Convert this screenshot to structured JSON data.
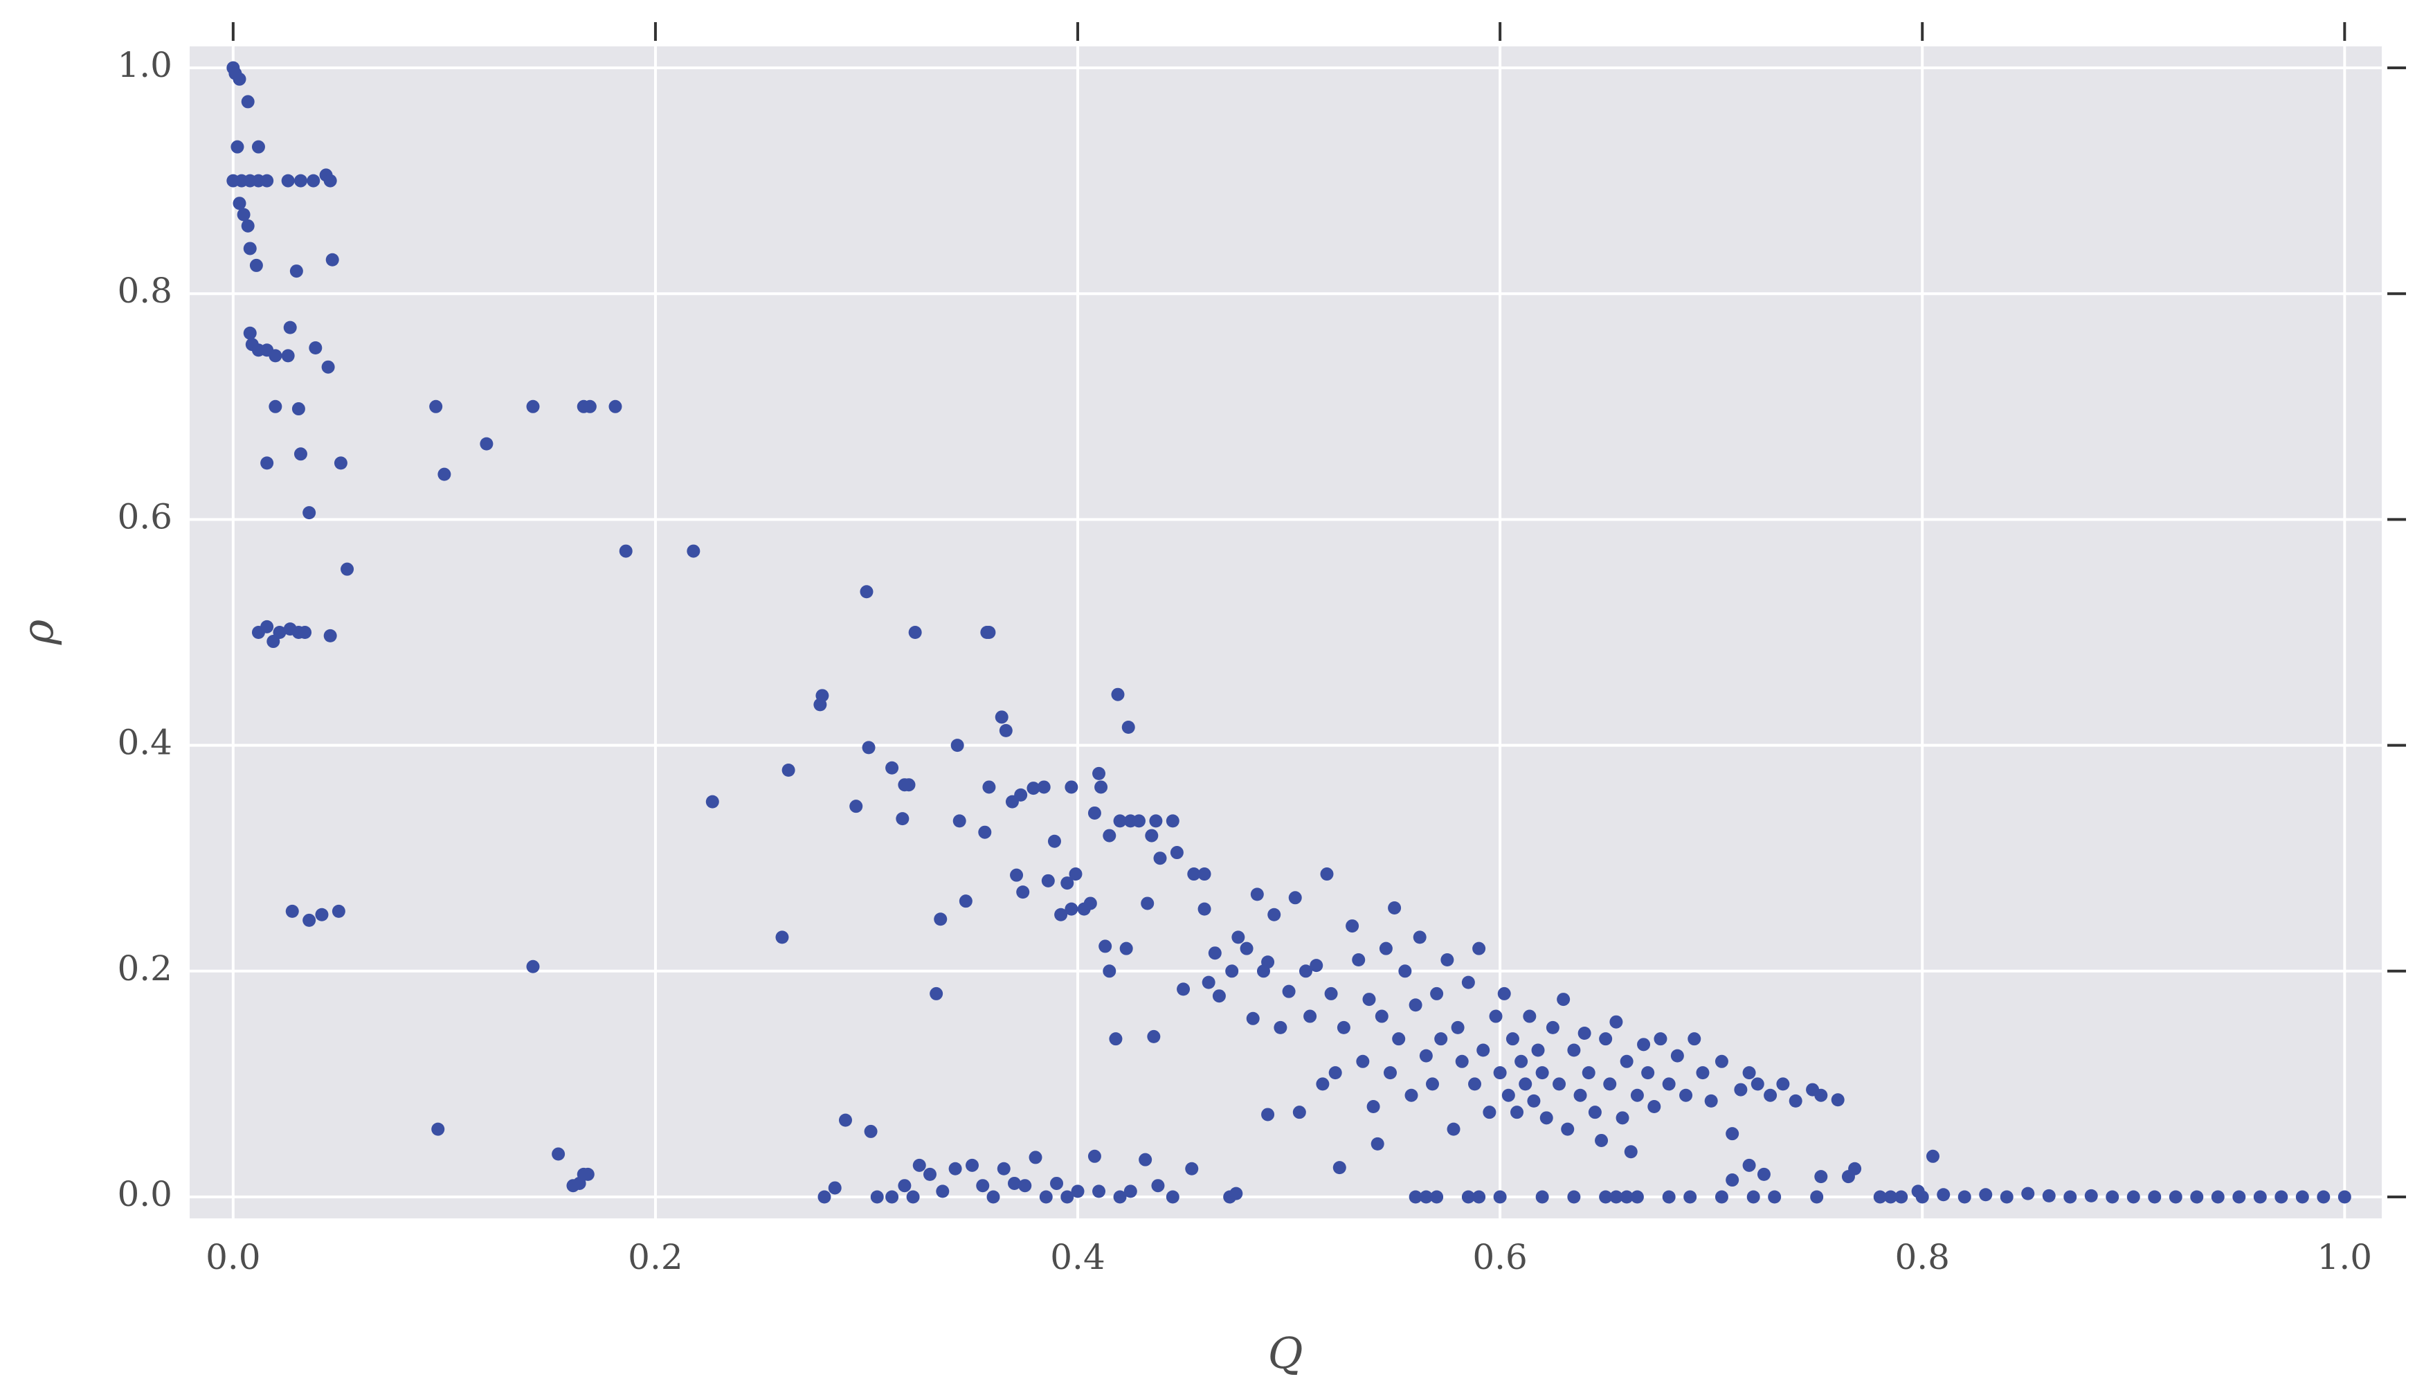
{
  "chart_data": {
    "type": "scatter",
    "x_label": "Q",
    "y_label": "ρ",
    "color": "#3a4fa3",
    "grid": true,
    "xlim": [
      -0.0206,
      1.0176
    ],
    "ylim": [
      -0.019,
      1.019
    ],
    "xticks": [
      {
        "value": 0,
        "label": "0.0"
      },
      0.2,
      0.4,
      0.6,
      0.8,
      {
        "value": 1,
        "label": "1.0"
      }
    ],
    "yticks": [
      {
        "value": 0,
        "label": "0.0"
      },
      0.2,
      0.4,
      0.6,
      0.8,
      {
        "value": 1,
        "label": "1.0"
      }
    ],
    "x": [
      0,
      0.001,
      0.003,
      0.002,
      0.007,
      0.012,
      0,
      0.004,
      0.008,
      0.012,
      0.016,
      0.026,
      0.032,
      0.038,
      0.044,
      0.046,
      0.003,
      0.005,
      0.007,
      0.008,
      0.011,
      0.03,
      0.047,
      0.008,
      0.009,
      0.012,
      0.016,
      0.02,
      0.026,
      0.027,
      0.039,
      0.045,
      0.02,
      0.031,
      0.016,
      0.032,
      0.051,
      0.036,
      0.054,
      0.012,
      0.016,
      0.019,
      0.022,
      0.027,
      0.031,
      0.034,
      0.046,
      0.028,
      0.036,
      0.042,
      0.05,
      0.096,
      0.1,
      0.12,
      0.142,
      0.166,
      0.169,
      0.181,
      0.186,
      0.218,
      0.227,
      0.142,
      0.097,
      0.154,
      0.161,
      0.164,
      0.166,
      0.168,
      0.26,
      0.263,
      0.278,
      0.279,
      0.295,
      0.3,
      0.301,
      0.312,
      0.317,
      0.318,
      0.32,
      0.323,
      0.333,
      0.335,
      0.343,
      0.344,
      0.347,
      0.356,
      0.357,
      0.358,
      0.358,
      0.364,
      0.366,
      0.369,
      0.371,
      0.373,
      0.374,
      0.379,
      0.384,
      0.386,
      0.389,
      0.392,
      0.395,
      0.397,
      0.397,
      0.399,
      0.403,
      0.406,
      0.408,
      0.41,
      0.411,
      0.413,
      0.415,
      0.415,
      0.418,
      0.419,
      0.42,
      0.423,
      0.424,
      0.425,
      0.429,
      0.433,
      0.435,
      0.436,
      0.437,
      0.439,
      0.445,
      0.447,
      0.45,
      0.455,
      0.46,
      0.46,
      0.462,
      0.465,
      0.467,
      0.473,
      0.476,
      0.48,
      0.483,
      0.485,
      0.488,
      0.49,
      0.49,
      0.493,
      0.496,
      0.5,
      0.503,
      0.505,
      0.508,
      0.51,
      0.513,
      0.516,
      0.518,
      0.52,
      0.522,
      0.524,
      0.526,
      0.53,
      0.533,
      0.535,
      0.538,
      0.54,
      0.542,
      0.544,
      0.546,
      0.548,
      0.55,
      0.552,
      0.555,
      0.558,
      0.56,
      0.562,
      0.565,
      0.568,
      0.57,
      0.572,
      0.575,
      0.578,
      0.58,
      0.582,
      0.585,
      0.588,
      0.59,
      0.592,
      0.595,
      0.598,
      0.6,
      0.602,
      0.604,
      0.606,
      0.608,
      0.61,
      0.612,
      0.614,
      0.616,
      0.618,
      0.62,
      0.622,
      0.625,
      0.628,
      0.63,
      0.632,
      0.635,
      0.638,
      0.64,
      0.642,
      0.645,
      0.648,
      0.65,
      0.652,
      0.655,
      0.658,
      0.66,
      0.662,
      0.665,
      0.668,
      0.67,
      0.673,
      0.676,
      0.68,
      0.684,
      0.688,
      0.692,
      0.696,
      0.7,
      0.705,
      0.71,
      0.714,
      0.718,
      0.722,
      0.728,
      0.734,
      0.74,
      0.748,
      0.752,
      0.76,
      0.28,
      0.285,
      0.29,
      0.302,
      0.305,
      0.312,
      0.318,
      0.322,
      0.325,
      0.33,
      0.336,
      0.342,
      0.35,
      0.355,
      0.36,
      0.365,
      0.37,
      0.375,
      0.38,
      0.385,
      0.39,
      0.395,
      0.4,
      0.408,
      0.41,
      0.42,
      0.425,
      0.432,
      0.438,
      0.445,
      0.454,
      0.472,
      0.475,
      0.56,
      0.565,
      0.57,
      0.585,
      0.59,
      0.6,
      0.62,
      0.635,
      0.65,
      0.655,
      0.66,
      0.665,
      0.68,
      0.69,
      0.705,
      0.71,
      0.718,
      0.72,
      0.725,
      0.73,
      0.75,
      0.752,
      0.765,
      0.768,
      0.78,
      0.785,
      0.79,
      0.798,
      0.8,
      0.805,
      0.81,
      0.82,
      0.83,
      0.84,
      0.85,
      0.86,
      0.87,
      0.88,
      0.89,
      0.9,
      0.91,
      0.92,
      0.93,
      0.94,
      0.95,
      0.96,
      0.97,
      0.98,
      0.99,
      1.0
    ],
    "values": [
      1.0,
      0.995,
      0.99,
      0.93,
      0.97,
      0.93,
      0.9,
      0.9,
      0.9,
      0.9,
      0.9,
      0.9,
      0.9,
      0.9,
      0.905,
      0.9,
      0.88,
      0.87,
      0.86,
      0.84,
      0.825,
      0.82,
      0.83,
      0.765,
      0.755,
      0.75,
      0.75,
      0.745,
      0.745,
      0.77,
      0.752,
      0.735,
      0.7,
      0.698,
      0.65,
      0.658,
      0.65,
      0.606,
      0.556,
      0.5,
      0.505,
      0.492,
      0.5,
      0.503,
      0.5,
      0.5,
      0.497,
      0.253,
      0.245,
      0.25,
      0.253,
      0.7,
      0.64,
      0.667,
      0.7,
      0.7,
      0.7,
      0.7,
      0.572,
      0.572,
      0.35,
      0.204,
      0.06,
      0.038,
      0.01,
      0.012,
      0.02,
      0.02,
      0.23,
      0.378,
      0.436,
      0.444,
      0.346,
      0.536,
      0.398,
      0.38,
      0.335,
      0.365,
      0.365,
      0.5,
      0.18,
      0.246,
      0.4,
      0.333,
      0.262,
      0.323,
      0.5,
      0.5,
      0.363,
      0.425,
      0.413,
      0.35,
      0.285,
      0.356,
      0.27,
      0.362,
      0.363,
      0.28,
      0.315,
      0.25,
      0.278,
      0.255,
      0.363,
      0.286,
      0.255,
      0.26,
      0.34,
      0.375,
      0.363,
      0.222,
      0.2,
      0.32,
      0.14,
      0.445,
      0.333,
      0.22,
      0.416,
      0.333,
      0.333,
      0.26,
      0.32,
      0.142,
      0.333,
      0.3,
      0.333,
      0.305,
      0.184,
      0.286,
      0.286,
      0.255,
      0.19,
      0.216,
      0.178,
      0.2,
      0.23,
      0.22,
      0.158,
      0.268,
      0.2,
      0.208,
      0.073,
      0.25,
      0.15,
      0.182,
      0.265,
      0.075,
      0.2,
      0.16,
      0.205,
      0.1,
      0.286,
      0.18,
      0.11,
      0.026,
      0.15,
      0.24,
      0.21,
      0.12,
      0.175,
      0.08,
      0.047,
      0.16,
      0.22,
      0.11,
      0.256,
      0.14,
      0.2,
      0.09,
      0.17,
      0.23,
      0.125,
      0.1,
      0.18,
      0.14,
      0.21,
      0.06,
      0.15,
      0.12,
      0.19,
      0.1,
      0.22,
      0.13,
      0.075,
      0.16,
      0.11,
      0.18,
      0.09,
      0.14,
      0.075,
      0.12,
      0.1,
      0.16,
      0.085,
      0.13,
      0.11,
      0.07,
      0.15,
      0.1,
      0.175,
      0.06,
      0.13,
      0.09,
      0.145,
      0.11,
      0.075,
      0.05,
      0.14,
      0.1,
      0.155,
      0.07,
      0.12,
      0.04,
      0.09,
      0.135,
      0.11,
      0.08,
      0.14,
      0.1,
      0.125,
      0.09,
      0.14,
      0.11,
      0.085,
      0.12,
      0.056,
      0.095,
      0.11,
      0.1,
      0.09,
      0.1,
      0.085,
      0.095,
      0.09,
      0.086,
      0,
      0.008,
      0.068,
      0.058,
      0,
      0,
      0.01,
      0,
      0.028,
      0.02,
      0.005,
      0.025,
      0.028,
      0.01,
      0,
      0.025,
      0.012,
      0.01,
      0.035,
      0,
      0.012,
      0,
      0.005,
      0.036,
      0.005,
      0,
      0.005,
      0.033,
      0.01,
      0,
      0.025,
      0,
      0.003,
      0,
      0,
      0,
      0,
      0,
      0,
      0,
      0,
      0,
      0,
      0,
      0,
      0,
      0,
      0,
      0.015,
      0.028,
      0,
      0.02,
      0,
      0,
      0.018,
      0.018,
      0.025,
      0,
      0,
      0,
      0.005,
      0,
      0.036,
      0.002,
      0,
      0.002,
      0,
      0.003,
      0.001,
      0,
      0.001,
      0,
      0,
      0,
      0,
      0,
      0,
      0,
      0,
      0,
      0,
      0,
      0
    ]
  }
}
